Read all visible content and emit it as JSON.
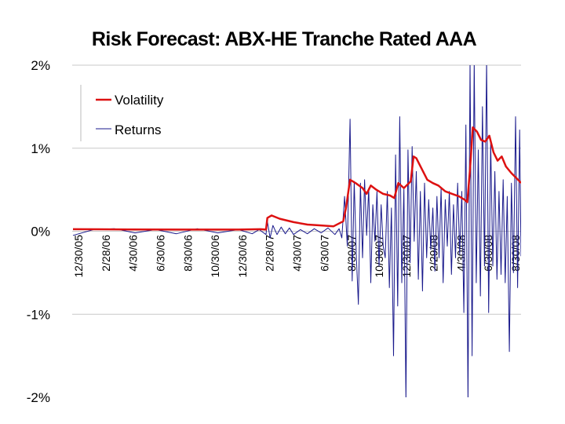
{
  "chart_data": {
    "type": "line",
    "title": "Risk Forecast: ABX-HE Tranche Rated AAA",
    "xlabel": "",
    "ylabel": "",
    "ylim": [
      -0.02,
      0.02
    ],
    "ytick_values": [
      0.02,
      0.01,
      0.0,
      -0.01,
      -0.02
    ],
    "ytick_labels": [
      "2%",
      "1%",
      "0%",
      "-1%",
      "-2%"
    ],
    "xtick_labels": [
      "12/30/05",
      "2/28/06",
      "4/30/06",
      "6/30/06",
      "8/30/06",
      "10/30/06",
      "12/30/06",
      "2/28/07",
      "4/30/07",
      "6/30/07",
      "8/30/07",
      "10/30/07",
      "12/30/07",
      "2/29/08",
      "4/30/08",
      "6/30/08",
      "8/30/08"
    ],
    "xrange_months": [
      0,
      32.5
    ],
    "grid": true,
    "legend": {
      "position": "top-left",
      "entries": [
        "Volatility",
        "Returns"
      ]
    },
    "series": [
      {
        "name": "Volatility",
        "color": "#dd1111",
        "points": [
          [
            0,
            0.00025
          ],
          [
            4,
            0.00022
          ],
          [
            8,
            0.0002
          ],
          [
            12,
            0.0002
          ],
          [
            13.6,
            0.00025
          ],
          [
            14,
            0.0002
          ],
          [
            14.1,
            0.0016
          ],
          [
            14.4,
            0.0019
          ],
          [
            15,
            0.0015
          ],
          [
            16,
            0.0011
          ],
          [
            17,
            0.0008
          ],
          [
            18,
            0.0007
          ],
          [
            18.9,
            0.0006
          ],
          [
            19.6,
            0.0012
          ],
          [
            19.8,
            0.0028
          ],
          [
            20.1,
            0.0062
          ],
          [
            20.5,
            0.0058
          ],
          [
            21,
            0.0052
          ],
          [
            21.3,
            0.0045
          ],
          [
            21.6,
            0.0055
          ],
          [
            22,
            0.005
          ],
          [
            22.5,
            0.0045
          ],
          [
            23,
            0.0043
          ],
          [
            23.3,
            0.004
          ],
          [
            23.6,
            0.0058
          ],
          [
            24,
            0.0052
          ],
          [
            24.5,
            0.006
          ],
          [
            24.7,
            0.009
          ],
          [
            24.9,
            0.0088
          ],
          [
            25.3,
            0.0075
          ],
          [
            25.7,
            0.0062
          ],
          [
            26.1,
            0.0058
          ],
          [
            26.5,
            0.0055
          ],
          [
            27,
            0.0048
          ],
          [
            27.5,
            0.0045
          ],
          [
            28,
            0.0042
          ],
          [
            28.4,
            0.0038
          ],
          [
            28.6,
            0.0035
          ],
          [
            28.8,
            0.0075
          ],
          [
            29,
            0.0125
          ],
          [
            29.3,
            0.012
          ],
          [
            29.6,
            0.011
          ],
          [
            29.9,
            0.0108
          ],
          [
            30.2,
            0.0115
          ],
          [
            30.5,
            0.0095
          ],
          [
            30.8,
            0.0085
          ],
          [
            31.1,
            0.009
          ],
          [
            31.4,
            0.0078
          ],
          [
            31.8,
            0.007
          ],
          [
            32.1,
            0.0065
          ],
          [
            32.4,
            0.006
          ],
          [
            32.5,
            0.0058
          ]
        ]
      },
      {
        "name": "Returns",
        "color": "#1a1a8c",
        "points": [
          [
            0,
            -0.0005
          ],
          [
            1.5,
            0.0002
          ],
          [
            3,
            0.0003
          ],
          [
            4.5,
            -0.0002
          ],
          [
            6,
            0.0002
          ],
          [
            7.5,
            -0.0003
          ],
          [
            9,
            0.0003
          ],
          [
            10.5,
            -0.0002
          ],
          [
            12,
            0.0002
          ],
          [
            13,
            -0.0003
          ],
          [
            13.5,
            0.0002
          ],
          [
            14,
            -0.0004
          ],
          [
            14.1,
            0.0012
          ],
          [
            14.3,
            -0.0008
          ],
          [
            14.5,
            0.0007
          ],
          [
            14.8,
            -0.0004
          ],
          [
            15.1,
            0.0005
          ],
          [
            15.4,
            -0.0003
          ],
          [
            15.7,
            0.0004
          ],
          [
            16,
            -0.0004
          ],
          [
            16.5,
            0.0002
          ],
          [
            17,
            -0.0003
          ],
          [
            17.5,
            0.0003
          ],
          [
            18,
            -0.0002
          ],
          [
            18.5,
            0.0004
          ],
          [
            19,
            -0.0004
          ],
          [
            19.3,
            0.0003
          ],
          [
            19.5,
            -0.0008
          ],
          [
            19.7,
            0.0042
          ],
          [
            19.9,
            -0.0018
          ],
          [
            20.1,
            0.0135
          ],
          [
            20.25,
            -0.006
          ],
          [
            20.4,
            0.006
          ],
          [
            20.55,
            -0.0028
          ],
          [
            20.7,
            -0.0088
          ],
          [
            20.85,
            0.0058
          ],
          [
            21,
            -0.0032
          ],
          [
            21.15,
            0.0062
          ],
          [
            21.3,
            -0.0005
          ],
          [
            21.45,
            0.0052
          ],
          [
            21.6,
            -0.0062
          ],
          [
            21.75,
            0.0032
          ],
          [
            21.9,
            -0.0012
          ],
          [
            22.05,
            0.0048
          ],
          [
            22.2,
            -0.0042
          ],
          [
            22.35,
            0.0032
          ],
          [
            22.5,
            -0.0018
          ],
          [
            22.65,
            -0.0032
          ],
          [
            22.8,
            0.0048
          ],
          [
            22.95,
            -0.0068
          ],
          [
            23.1,
            0.0028
          ],
          [
            23.25,
            -0.015
          ],
          [
            23.4,
            0.0092
          ],
          [
            23.55,
            -0.009
          ],
          [
            23.7,
            0.0138
          ],
          [
            23.85,
            -0.0062
          ],
          [
            24,
            0.0052
          ],
          [
            24.15,
            -0.0205
          ],
          [
            24.3,
            0.0098
          ],
          [
            24.45,
            -0.0038
          ],
          [
            24.6,
            0.0102
          ],
          [
            24.75,
            -0.0012
          ],
          [
            24.9,
            0.0072
          ],
          [
            25.05,
            -0.0058
          ],
          [
            25.2,
            0.0048
          ],
          [
            25.35,
            -0.0072
          ],
          [
            25.5,
            0.0058
          ],
          [
            25.65,
            -0.0032
          ],
          [
            25.8,
            0.0038
          ],
          [
            25.95,
            -0.0022
          ],
          [
            26.1,
            0.0028
          ],
          [
            26.25,
            -0.0048
          ],
          [
            26.4,
            0.0042
          ],
          [
            26.55,
            -0.0032
          ],
          [
            26.7,
            0.0052
          ],
          [
            26.85,
            -0.0062
          ],
          [
            27,
            0.0038
          ],
          [
            27.15,
            -0.0018
          ],
          [
            27.3,
            0.0048
          ],
          [
            27.45,
            -0.0052
          ],
          [
            27.6,
            0.0032
          ],
          [
            27.75,
            -0.0032
          ],
          [
            27.9,
            0.0058
          ],
          [
            28.05,
            -0.0028
          ],
          [
            28.2,
            0.0048
          ],
          [
            28.35,
            -0.0098
          ],
          [
            28.5,
            0.0128
          ],
          [
            28.65,
            -0.0205
          ],
          [
            28.8,
            0.0205
          ],
          [
            28.95,
            -0.015
          ],
          [
            29.1,
            0.0205
          ],
          [
            29.25,
            -0.0062
          ],
          [
            29.4,
            0.0098
          ],
          [
            29.55,
            -0.0078
          ],
          [
            29.7,
            0.015
          ],
          [
            29.85,
            -0.0042
          ],
          [
            30,
            0.0205
          ],
          [
            30.15,
            -0.0098
          ],
          [
            30.3,
            0.0108
          ],
          [
            30.45,
            -0.0042
          ],
          [
            30.6,
            0.0072
          ],
          [
            30.75,
            -0.0058
          ],
          [
            30.9,
            0.0048
          ],
          [
            31.05,
            -0.0052
          ],
          [
            31.2,
            0.0062
          ],
          [
            31.35,
            -0.0062
          ],
          [
            31.5,
            0.0042
          ],
          [
            31.65,
            -0.0145
          ],
          [
            31.8,
            0.0058
          ],
          [
            31.95,
            -0.005
          ],
          [
            32.1,
            0.0138
          ],
          [
            32.25,
            -0.0068
          ],
          [
            32.4,
            0.0122
          ],
          [
            32.5,
            -0.003
          ]
        ]
      }
    ]
  }
}
